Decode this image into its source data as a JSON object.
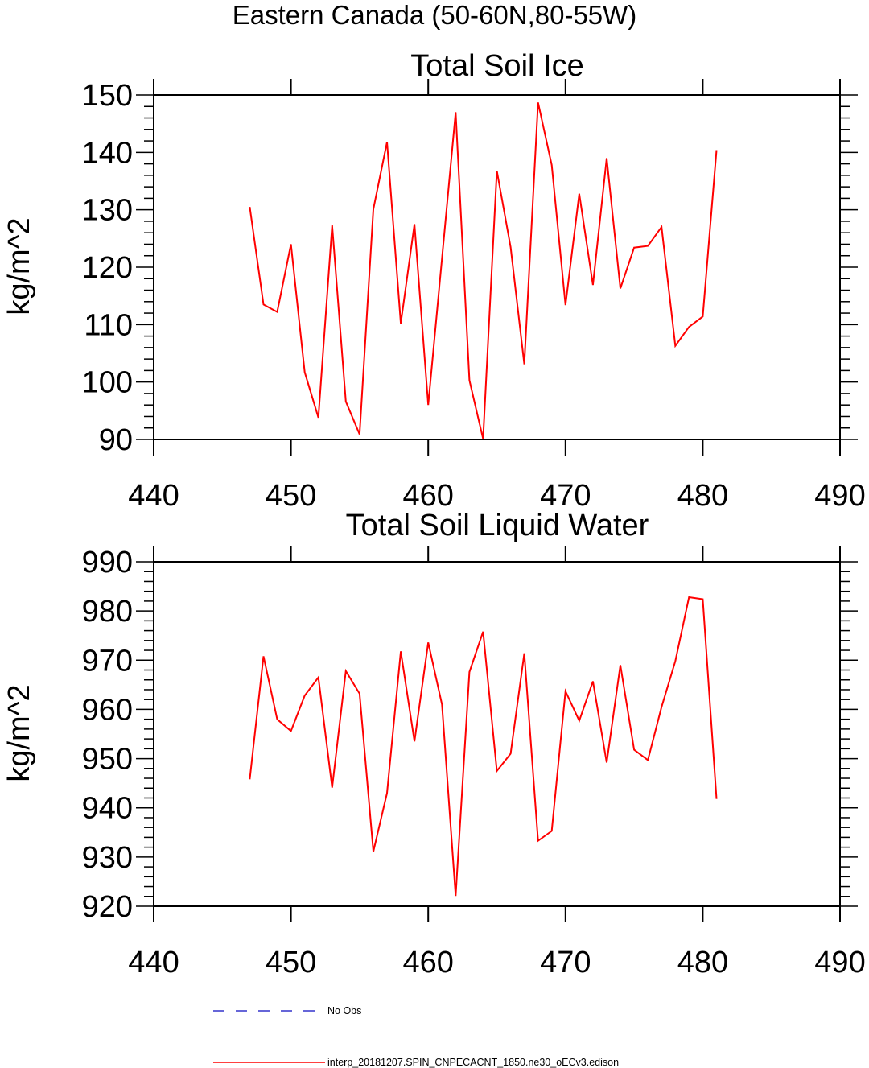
{
  "figure_title": "Eastern Canada (50-60N,80-55W)",
  "legend": [
    {
      "label": "No Obs",
      "color": "#3333cc",
      "style": "dashed"
    },
    {
      "label": "interp_20181207.SPIN_CNPECACNT_1850.ne30_oECv3.edison",
      "color": "#ff0000",
      "style": "solid"
    }
  ],
  "chart_data": [
    {
      "type": "line",
      "title": "Total Soil Ice",
      "xlabel": "",
      "ylabel": "kg/m^2",
      "xlim": [
        440,
        490
      ],
      "ylim": [
        90,
        150
      ],
      "xticks": [
        440,
        450,
        460,
        470,
        480,
        490
      ],
      "yticks": [
        90,
        100,
        110,
        120,
        130,
        140,
        150
      ],
      "grid": false,
      "series": [
        {
          "color": "#ff0000",
          "x": [
            447,
            448,
            449,
            450,
            451,
            452,
            453,
            454,
            455,
            456,
            457,
            458,
            459,
            460,
            461,
            462,
            463,
            464,
            465,
            466,
            467,
            468,
            469,
            470,
            471,
            472,
            473,
            474,
            475,
            476,
            477,
            478,
            479,
            480,
            481
          ],
          "values": [
            130.5,
            113.5,
            112.2,
            124,
            101.7,
            93.8,
            127.3,
            96.6,
            90.9,
            130.1,
            141.8,
            110.2,
            127.5,
            96,
            121.5,
            147,
            100.3,
            90.1,
            136.8,
            123.5,
            103.1,
            148.7,
            137.8,
            113.4,
            132.8,
            116.9,
            139,
            116.3,
            123.4,
            123.7,
            127,
            106.3,
            109.6,
            111.4,
            140.4
          ]
        }
      ]
    },
    {
      "type": "line",
      "title": "Total Soil Liquid Water",
      "xlabel": "",
      "ylabel": "kg/m^2",
      "xlim": [
        440,
        490
      ],
      "ylim": [
        920,
        990
      ],
      "xticks": [
        440,
        450,
        460,
        470,
        480,
        490
      ],
      "yticks": [
        920,
        930,
        940,
        950,
        960,
        970,
        980,
        990
      ],
      "grid": false,
      "series": [
        {
          "color": "#ff0000",
          "x": [
            447,
            448,
            449,
            450,
            451,
            452,
            453,
            454,
            455,
            456,
            457,
            458,
            459,
            460,
            461,
            462,
            463,
            464,
            465,
            466,
            467,
            468,
            469,
            470,
            471,
            472,
            473,
            474,
            475,
            476,
            477,
            478,
            479,
            480,
            481
          ],
          "values": [
            945.8,
            970.8,
            958,
            955.6,
            962.8,
            966.5,
            944.1,
            967.8,
            963.2,
            931.1,
            943,
            971.8,
            953.5,
            973.6,
            961,
            922.1,
            967.6,
            975.8,
            947.5,
            951,
            971.4,
            933.3,
            935.3,
            963.7,
            957.7,
            965.7,
            949.2,
            969,
            951.8,
            949.7,
            960.5,
            969.8,
            982.8,
            982.4,
            941.8
          ]
        }
      ]
    }
  ]
}
